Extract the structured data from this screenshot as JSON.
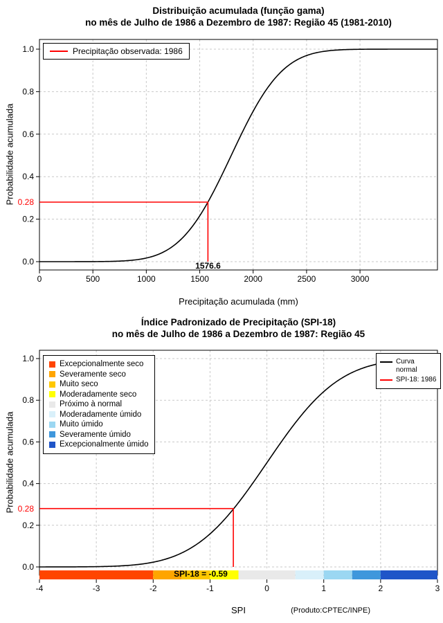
{
  "page": {
    "background": "#FFFFFF"
  },
  "chart_data": [
    {
      "type": "line",
      "title_line1": "Distribuição acumulada (função gama)",
      "title_line2": "no mês de Julho de 1986 a Dezembro de 1987: Região 45 (1981-2010)",
      "ylabel": "Probabilidade acumulada",
      "xlabel": "Precipitação acumulada (mm)",
      "x_ticks": [
        0,
        500,
        1000,
        1500,
        2000,
        2500,
        3000
      ],
      "y_ticks": [
        "0.0",
        "0.2",
        "0.4",
        "0.6",
        "0.8",
        "1.0"
      ],
      "xlim": [
        0,
        3725
      ],
      "ylim": [
        0,
        1
      ],
      "grid": true,
      "curve_color": "#000000",
      "curve_model": {
        "type": "cumulative gamma (normal approximation)",
        "mean": 1795,
        "sd": 375
      },
      "curve_points": {
        "x": [
          0,
          100,
          200,
          300,
          400,
          500,
          600,
          700,
          800,
          900,
          1000,
          1100,
          1200,
          1300,
          1400,
          1500,
          1600,
          1700,
          1800,
          1900,
          2000,
          2100,
          2200,
          2300,
          2400,
          2500,
          2600,
          2700,
          2800,
          2900,
          3000,
          3100,
          3200,
          3300,
          3400,
          3500,
          3600,
          3700
        ],
        "y": [
          0,
          0,
          0,
          0,
          0.0001,
          0.0003,
          0.0007,
          0.0018,
          0.004,
          0.0084,
          0.017,
          0.0319,
          0.0563,
          0.0934,
          0.1462,
          0.2157,
          0.3015,
          0.4001,
          0.5053,
          0.6103,
          0.7078,
          0.7919,
          0.8599,
          0.911,
          0.9466,
          0.9699,
          0.9841,
          0.9921,
          0.9963,
          0.9984,
          0.9993,
          0.9997,
          0.9999,
          1,
          1,
          1,
          1,
          1
        ]
      },
      "legend": {
        "label": "Precipitação observada: 1986",
        "line_color": "#FF0000"
      },
      "annotation": {
        "prob": 0.28,
        "prob_label": "0.28",
        "value": 1576.6,
        "value_label": "1576.6",
        "color": "#FF0000"
      }
    },
    {
      "type": "line",
      "title_line1": "Índice Padronizado de Precipitação (SPI-18)",
      "title_line2": "no mês de Julho de 1986 a Dezembro de 1987: Região 45",
      "ylabel": "Probabilidade acumulada",
      "xlabel": "SPI",
      "credit": "(Produto:CPTEC/INPE)",
      "x_ticks": [
        -4,
        -3,
        -2,
        -1,
        0,
        1,
        2,
        3
      ],
      "y_ticks": [
        "0.0",
        "0.2",
        "0.4",
        "0.6",
        "0.8",
        "1.0"
      ],
      "xlim": [
        -4,
        3
      ],
      "ylim": [
        0,
        1
      ],
      "grid": true,
      "curve_color": "#000000",
      "curve_model": {
        "type": "standard normal cdf",
        "mean": 0,
        "sd": 1
      },
      "curve_points": {
        "x": [
          -4,
          -3.75,
          -3.5,
          -3.25,
          -3,
          -2.75,
          -2.5,
          -2.25,
          -2,
          -1.75,
          -1.5,
          -1.25,
          -1,
          -0.75,
          -0.5,
          -0.25,
          0,
          0.25,
          0.5,
          0.75,
          1,
          1.25,
          1.5,
          1.75,
          2,
          2.25,
          2.5,
          2.75,
          3
        ],
        "y": [
          0,
          0.0001,
          0.0002,
          0.0006,
          0.0013,
          0.003,
          0.0062,
          0.0122,
          0.0228,
          0.0401,
          0.0668,
          0.1056,
          0.1587,
          0.2266,
          0.3085,
          0.4013,
          0.5,
          0.5987,
          0.6915,
          0.7734,
          0.8413,
          0.8944,
          0.9332,
          0.9599,
          0.9772,
          0.9878,
          0.9938,
          0.997,
          0.9987
        ],
        "note": "cumulative probability curve"
      },
      "legend_right": {
        "entries": [
          {
            "label": "Curva normal",
            "color": "#000000"
          },
          {
            "label": "SPI-18: 1986",
            "color": "#FF0000"
          }
        ]
      },
      "categories": [
        {
          "label": "Excepcionalmente seco",
          "color": "#FF4500",
          "from": -4,
          "to": -2
        },
        {
          "label": "Severamente seco",
          "color": "#FFA500",
          "from": -2,
          "to": -1.5
        },
        {
          "label": "Muito seco",
          "color": "#FFC800",
          "from": -1.5,
          "to": -1
        },
        {
          "label": "Moderadamente seco",
          "color": "#FFFF00",
          "from": -1,
          "to": -0.5
        },
        {
          "label": "Próximo à normal",
          "color": "#E9E9E9",
          "from": -0.5,
          "to": 0.5
        },
        {
          "label": "Moderadamente úmido",
          "color": "#D9F0FA",
          "from": 0.5,
          "to": 1
        },
        {
          "label": "Muito úmido",
          "color": "#9BD7F2",
          "from": 1,
          "to": 1.5
        },
        {
          "label": "Severamente úmido",
          "color": "#3F97DC",
          "from": 1.5,
          "to": 2
        },
        {
          "label": "Excepcionalmente úmido",
          "color": "#1F55C8",
          "from": 2,
          "to": 3
        }
      ],
      "annotation": {
        "prob": 0.28,
        "prob_label": "0.28",
        "spi": -0.59,
        "band_label": "SPI-18 = -0.59",
        "color": "#FF0000"
      }
    }
  ]
}
